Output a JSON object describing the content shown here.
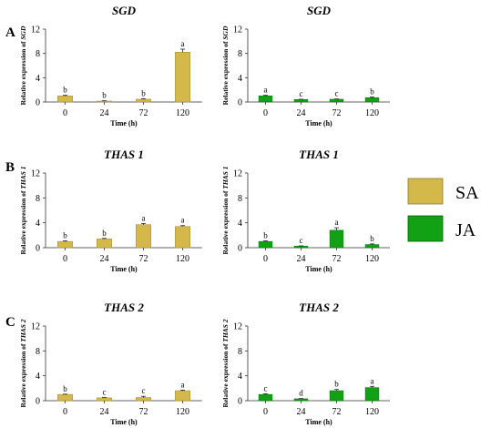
{
  "panel_letters": [
    "A",
    "B",
    "C"
  ],
  "legend": [
    {
      "label": "SA",
      "color": "#d4b84a"
    },
    {
      "label": "JA",
      "color": "#12a015"
    }
  ],
  "chart_data": [
    {
      "type": "bar",
      "title": "SGD",
      "ylabel_prefix": "Relative expression of",
      "gene": "SGD",
      "xlabel": "Time (h)",
      "categories": [
        "0",
        "24",
        "72",
        "120"
      ],
      "values": [
        1.0,
        0.15,
        0.45,
        8.2
      ],
      "errors": [
        0.1,
        0.05,
        0.1,
        0.5
      ],
      "letters": [
        "b",
        "b",
        "b",
        "a"
      ],
      "ylim": [
        0,
        12
      ],
      "yticks": [
        "0",
        "4",
        "8",
        "12"
      ],
      "series": "SA",
      "color": "#d4b84a"
    },
    {
      "type": "bar",
      "title": "SGD",
      "ylabel_prefix": "Relative expression of",
      "gene": "SGD",
      "xlabel": "Time (h)",
      "categories": [
        "0",
        "24",
        "72",
        "120"
      ],
      "values": [
        1.0,
        0.4,
        0.45,
        0.7
      ],
      "errors": [
        0.1,
        0.05,
        0.05,
        0.1
      ],
      "letters": [
        "a",
        "c",
        "c",
        "b"
      ],
      "ylim": [
        0,
        12
      ],
      "yticks": [
        "0",
        "4",
        "8",
        "12"
      ],
      "series": "JA",
      "color": "#12a015"
    },
    {
      "type": "bar",
      "title": "THAS 1",
      "ylabel_prefix": "Relative expression of",
      "gene": "THAS 1",
      "xlabel": "Time (h)",
      "categories": [
        "0",
        "24",
        "72",
        "120"
      ],
      "values": [
        1.0,
        1.4,
        3.7,
        3.4
      ],
      "errors": [
        0.1,
        0.1,
        0.2,
        0.15
      ],
      "letters": [
        "b",
        "b",
        "a",
        "a"
      ],
      "ylim": [
        0,
        12
      ],
      "yticks": [
        "0",
        "4",
        "8",
        "12"
      ],
      "series": "SA",
      "color": "#d4b84a"
    },
    {
      "type": "bar",
      "title": "THAS 1",
      "ylabel_prefix": "Relative expression of",
      "gene": "THAS 1",
      "xlabel": "Time (h)",
      "categories": [
        "0",
        "24",
        "72",
        "120"
      ],
      "values": [
        1.0,
        0.25,
        2.8,
        0.5
      ],
      "errors": [
        0.1,
        0.05,
        0.4,
        0.1
      ],
      "letters": [
        "b",
        "c",
        "a",
        "b"
      ],
      "ylim": [
        0,
        12
      ],
      "yticks": [
        "0",
        "4",
        "8",
        "12"
      ],
      "series": "JA",
      "color": "#12a015"
    },
    {
      "type": "bar",
      "title": "THAS 2",
      "ylabel_prefix": "Relative expression of",
      "gene": "THAS 2",
      "xlabel": "Time (h)",
      "categories": [
        "0",
        "24",
        "72",
        "120"
      ],
      "values": [
        1.0,
        0.45,
        0.5,
        1.6
      ],
      "errors": [
        0.05,
        0.05,
        0.2,
        0.1
      ],
      "letters": [
        "b",
        "c",
        "c",
        "a"
      ],
      "ylim": [
        0,
        12
      ],
      "yticks": [
        "0",
        "4",
        "8",
        "12"
      ],
      "series": "SA",
      "color": "#d4b84a"
    },
    {
      "type": "bar",
      "title": "THAS 2",
      "ylabel_prefix": "Relative expression of",
      "gene": "THAS 2",
      "xlabel": "Time (h)",
      "categories": [
        "0",
        "24",
        "72",
        "120"
      ],
      "values": [
        1.0,
        0.3,
        1.6,
        2.1
      ],
      "errors": [
        0.1,
        0.05,
        0.2,
        0.2
      ],
      "letters": [
        "c",
        "d",
        "b",
        "a"
      ],
      "ylim": [
        0,
        12
      ],
      "yticks": [
        "0",
        "4",
        "8",
        "12"
      ],
      "series": "JA",
      "color": "#12a015"
    }
  ]
}
